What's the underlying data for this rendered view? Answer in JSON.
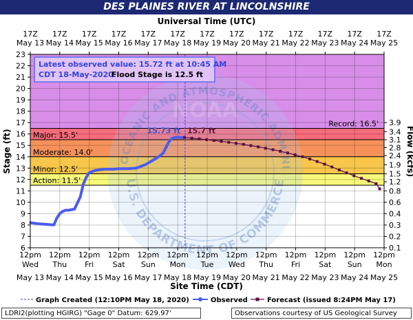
{
  "colors": {
    "title_bg": "#1d2873",
    "observed": "#4a5cf0",
    "forecast": "#5a1046",
    "major": "#f76b7b",
    "moderate": "#f6915c",
    "minor": "#f7c64a",
    "action": "#f8f87a",
    "above_record": "#d88ee8"
  },
  "chart_data": {
    "type": "line",
    "title": "DES PLAINES RIVER AT LINCOLNSHIRE",
    "top_axis_label": "Universal Time (UTC)",
    "xlabel": "Site Time (CDT)",
    "ylabel": "Stage (ft)",
    "y2label": "Flow (kcfs)",
    "ylim": [
      6,
      23
    ],
    "y_ticks": [
      6,
      7,
      8,
      9,
      10,
      11,
      12,
      13,
      14,
      15,
      16,
      17,
      18,
      19,
      20,
      21,
      22,
      23
    ],
    "xlim": [
      0,
      12
    ],
    "x_ticks": [
      {
        "top": "12pm",
        "mid": "Wed",
        "date": "May 13"
      },
      {
        "top": "12pm",
        "mid": "Thu",
        "date": "May 14"
      },
      {
        "top": "12pm",
        "mid": "Fri",
        "date": "May 15"
      },
      {
        "top": "12pm",
        "mid": "Sat",
        "date": "May 16"
      },
      {
        "top": "12pm",
        "mid": "Sun",
        "date": "May 17"
      },
      {
        "top": "12pm",
        "mid": "Mon",
        "date": "May 18"
      },
      {
        "top": "12pm",
        "mid": "Tue",
        "date": "May 19"
      },
      {
        "top": "12pm",
        "mid": "Wed",
        "date": "May 20"
      },
      {
        "top": "12pm",
        "mid": "Thu",
        "date": "May 21"
      },
      {
        "top": "12pm",
        "mid": "Fri",
        "date": "May 22"
      },
      {
        "top": "12pm",
        "mid": "Sat",
        "date": "May 23"
      },
      {
        "top": "12pm",
        "mid": "Sun",
        "date": "May 24"
      },
      {
        "top": "12pm",
        "mid": "Mon",
        "date": "May 25"
      }
    ],
    "utc_ticks": [
      {
        "hour": "17Z",
        "date": "May 13"
      },
      {
        "hour": "17Z",
        "date": "May 14"
      },
      {
        "hour": "17Z",
        "date": "May 15"
      },
      {
        "hour": "17Z",
        "date": "May 16"
      },
      {
        "hour": "17Z",
        "date": "May 17"
      },
      {
        "hour": "17Z",
        "date": "May 18"
      },
      {
        "hour": "17Z",
        "date": "May 19"
      },
      {
        "hour": "17Z",
        "date": "May 20"
      },
      {
        "hour": "17Z",
        "date": "May 21"
      },
      {
        "hour": "17Z",
        "date": "May 22"
      },
      {
        "hour": "17Z",
        "date": "May 23"
      },
      {
        "hour": "17Z",
        "date": "May 24"
      },
      {
        "hour": "17Z",
        "date": "May 25"
      }
    ],
    "flow_ticks": [
      {
        "label": "0.1",
        "stage": 6.0
      },
      {
        "label": "0.2",
        "stage": 7.0
      },
      {
        "label": "0.3",
        "stage": 8.0
      },
      {
        "label": "0.4",
        "stage": 9.0
      },
      {
        "label": "0.6",
        "stage": 10.0
      },
      {
        "label": "0.8",
        "stage": 11.0
      },
      {
        "label": "1.2",
        "stage": 11.8
      },
      {
        "label": "1.5",
        "stage": 12.5
      },
      {
        "label": "1.9",
        "stage": 13.3
      },
      {
        "label": "2.4",
        "stage": 14.1
      },
      {
        "label": "2.8",
        "stage": 14.8
      },
      {
        "label": "3.1",
        "stage": 15.5
      },
      {
        "label": "3.4",
        "stage": 16.2
      },
      {
        "label": "3.9",
        "stage": 17.0
      }
    ],
    "flood_categories": [
      {
        "name": "Action",
        "label": "Action: 11.5'",
        "from": 11.5,
        "to": 12.5
      },
      {
        "name": "Minor",
        "label": "Minor: 12.5'",
        "from": 12.5,
        "to": 14.0
      },
      {
        "name": "Moderate",
        "label": "Moderate: 14.0'",
        "from": 14.0,
        "to": 15.5
      },
      {
        "name": "Major",
        "label": "Major: 15.5'",
        "from": 15.5,
        "to": 16.5
      },
      {
        "name": "Record",
        "label": "Record: 16.5'",
        "from": 16.5,
        "to": 23.0
      }
    ],
    "series": [
      {
        "name": "Observed",
        "x": [
          0.0,
          0.3,
          0.8,
          0.9,
          1.0,
          1.1,
          1.2,
          1.3,
          1.5,
          1.7,
          1.8,
          1.9,
          2.0,
          2.2,
          2.5,
          2.8,
          3.0,
          3.3,
          3.6,
          3.9,
          4.1,
          4.3,
          4.5,
          4.7,
          4.8,
          4.9,
          5.0,
          5.1,
          5.15,
          5.2
        ],
        "values": [
          8.2,
          8.1,
          8.0,
          8.6,
          9.0,
          9.2,
          9.3,
          9.3,
          9.4,
          10.5,
          11.6,
          12.2,
          12.6,
          12.8,
          12.9,
          12.9,
          12.95,
          12.95,
          13.0,
          13.3,
          13.6,
          13.9,
          14.3,
          15.3,
          15.6,
          15.7,
          15.72,
          15.7,
          15.7,
          15.7
        ]
      },
      {
        "name": "Forecast",
        "x": [
          5.23,
          5.48,
          5.73,
          5.98,
          6.23,
          6.48,
          6.73,
          6.98,
          7.23,
          7.48,
          7.73,
          7.98,
          8.23,
          8.48,
          8.73,
          8.98,
          9.23,
          9.48,
          9.73,
          9.98,
          10.23,
          10.48,
          10.73,
          10.98,
          11.23,
          11.48,
          11.73,
          11.85
        ],
        "values": [
          15.7,
          15.63,
          15.57,
          15.5,
          15.43,
          15.35,
          15.27,
          15.18,
          15.09,
          14.98,
          14.87,
          14.75,
          14.62,
          14.48,
          14.33,
          14.17,
          14.0,
          13.8,
          13.58,
          13.35,
          13.1,
          12.84,
          12.58,
          12.33,
          12.1,
          11.87,
          11.63,
          11.18
        ]
      }
    ],
    "graph_created_x": 5.25,
    "annotations": {
      "observed_peak": "15.73 ft",
      "forecast_peak": "15.7 ft"
    },
    "info_box": {
      "line1": "Latest observed value: 15.72 ft at 10:45 AM",
      "line2a": "CDT 18-May-2020.",
      "line2b": "Flood Stage is 12.5 ft"
    },
    "legend": {
      "graph_created": "Graph Created (12:10PM May 18, 2020)",
      "observed": "Observed",
      "forecast": "Forecast (issued 8:24PM May 17)"
    },
    "watermark": {
      "center": "NOAA",
      "top_arc": "NATIONAL OCEANIC AND ATMOSPHERIC ADMINISTRATION",
      "bottom_arc": "U.S. DEPARTMENT OF COMMERCE"
    }
  },
  "footer": {
    "left": "LDRI2(plotting HGIRG) \"Gage 0\" Datum: 629.97'",
    "right": "Observations courtesy of US Geological Survey"
  }
}
